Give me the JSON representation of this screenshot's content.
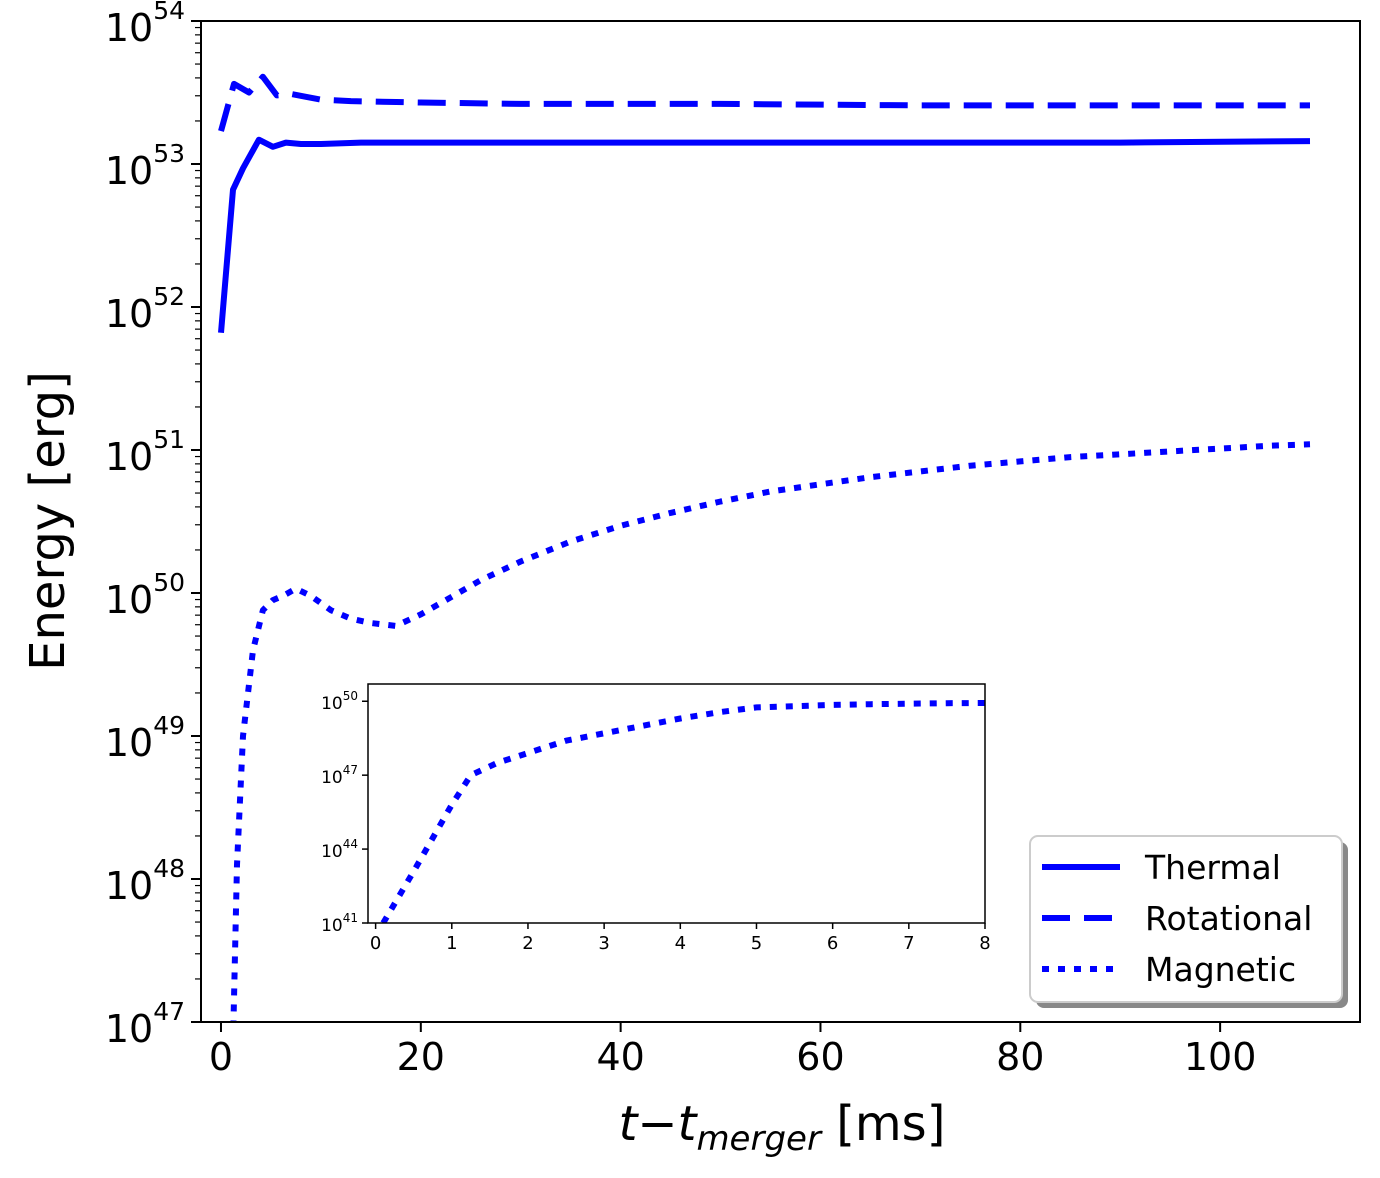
{
  "chart_data": [
    {
      "type": "line",
      "title": "",
      "xlabel": {
        "var_t": "t",
        "minus": "−",
        "var_t2": "t",
        "subscript": "merger",
        "unit": " [ms]"
      },
      "ylabel": "Energy [erg]",
      "yscale": "log",
      "xlim": [
        -2,
        114
      ],
      "ylim_exp": [
        47,
        54
      ],
      "x_ticks": [
        0,
        20,
        40,
        60,
        80,
        100
      ],
      "x_tick_labels": [
        "0",
        "20",
        "40",
        "60",
        "80",
        "100"
      ],
      "y_tick_exps": [
        47,
        48,
        49,
        50,
        51,
        52,
        53,
        54
      ],
      "y_tick_base": "10",
      "y_tick_sups": [
        "47",
        "48",
        "49",
        "50",
        "51",
        "52",
        "53",
        "54"
      ],
      "legend": {
        "location": "lower-right",
        "entries": [
          "Thermal",
          "Rotational",
          "Magnetic"
        ]
      },
      "color": "#0000ff",
      "series": [
        {
          "name": "Thermal",
          "style": "solid",
          "x": [
            0,
            1.2,
            2.2,
            3.8,
            5.2,
            6.5,
            8,
            10,
            14,
            20,
            30,
            50,
            70,
            90,
            109
          ],
          "log10_values": [
            51.82,
            52.82,
            52.97,
            53.17,
            53.12,
            53.15,
            53.14,
            53.14,
            53.15,
            53.15,
            53.15,
            53.15,
            53.15,
            53.15,
            53.16
          ]
        },
        {
          "name": "Rotational",
          "style": "dashed",
          "x": [
            0,
            1.3,
            2.8,
            4.2,
            5.6,
            7,
            8.5,
            10,
            13,
            20,
            30,
            50,
            70,
            90,
            109
          ],
          "log10_values": [
            53.23,
            53.56,
            53.5,
            53.61,
            53.48,
            53.49,
            53.47,
            53.45,
            53.44,
            53.43,
            53.42,
            53.42,
            53.41,
            53.41,
            53.41
          ]
        },
        {
          "name": "Magnetic",
          "style": "dotted",
          "x": [
            1.2,
            1.6,
            2.2,
            3.2,
            4.2,
            5.2,
            6.2,
            7.5,
            9,
            11,
            13,
            15,
            17.5,
            20,
            23,
            26,
            30,
            35,
            40,
            45,
            50,
            55,
            60,
            65,
            70,
            75,
            80,
            85,
            90,
            95,
            100,
            105,
            109
          ],
          "log10_values": [
            46.85,
            48.1,
            49.0,
            49.6,
            49.88,
            49.95,
            49.98,
            50.03,
            49.98,
            49.88,
            49.82,
            49.79,
            49.77,
            49.85,
            49.97,
            50.09,
            50.22,
            50.36,
            50.47,
            50.56,
            50.64,
            50.71,
            50.76,
            50.81,
            50.85,
            50.89,
            50.92,
            50.95,
            50.97,
            50.99,
            51.01,
            51.03,
            51.04
          ]
        }
      ]
    },
    {
      "type": "line",
      "title": "inset",
      "xlabel": "",
      "ylabel": "",
      "yscale": "log",
      "xlim": [
        -0.1,
        8
      ],
      "ylim_exp": [
        41,
        50.7
      ],
      "x_ticks": [
        0,
        1,
        2,
        3,
        4,
        5,
        6,
        7,
        8
      ],
      "x_tick_labels": [
        "0",
        "1",
        "2",
        "3",
        "4",
        "5",
        "6",
        "7",
        "8"
      ],
      "y_tick_exps": [
        41,
        44,
        47,
        50
      ],
      "y_tick_base": "10",
      "y_tick_sups": [
        "41",
        "44",
        "47",
        "50"
      ],
      "color": "#0000ff",
      "series": [
        {
          "name": "Magnetic",
          "style": "dotted",
          "x": [
            0.1,
            0.5,
            1.0,
            1.25,
            1.6,
            2.0,
            2.5,
            3.0,
            3.5,
            4.0,
            4.5,
            5.0,
            5.5,
            6.0,
            6.5,
            7.0,
            7.5,
            8.0
          ],
          "log10_values": [
            41.0,
            43.1,
            45.8,
            47.0,
            47.5,
            47.9,
            48.4,
            48.7,
            49.0,
            49.3,
            49.55,
            49.75,
            49.8,
            49.85,
            49.88,
            49.9,
            49.92,
            49.93
          ]
        }
      ]
    }
  ]
}
